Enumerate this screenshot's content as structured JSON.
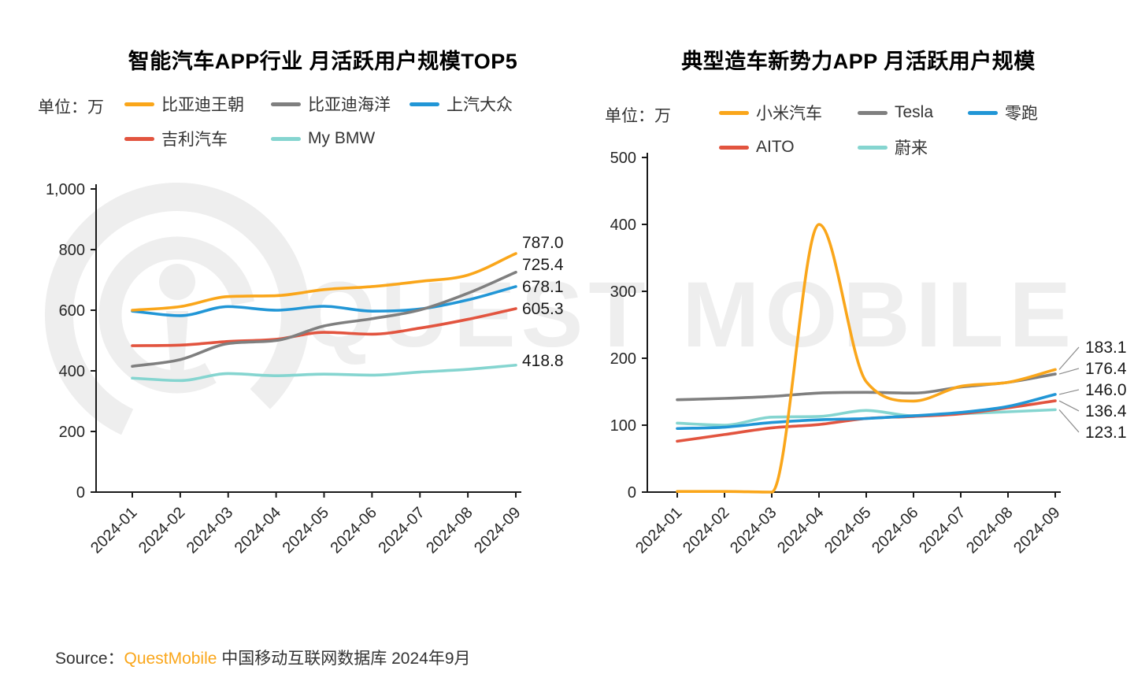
{
  "watermark": {
    "text": "QUEST MOBILE"
  },
  "source": {
    "label": "Source：",
    "brand": "QuestMobile",
    "rest": " 中国移动互联网数据库 2024年9月"
  },
  "chart_data": [
    {
      "type": "line",
      "title": "智能汽车APP行业 月活跃用户规模TOP5",
      "unit_label": "单位：万",
      "xlabel": "",
      "ylabel": "",
      "grid": false,
      "legend_position": "top",
      "categories": [
        "2024-01",
        "2024-02",
        "2024-03",
        "2024-04",
        "2024-05",
        "2024-06",
        "2024-07",
        "2024-08",
        "2024-09"
      ],
      "ylim": [
        0,
        1000
      ],
      "yticks": [
        0,
        200,
        400,
        600,
        800,
        1000
      ],
      "ytick_labels": [
        "0",
        "200",
        "400",
        "600",
        "800",
        "1,000"
      ],
      "series": [
        {
          "name": "比亚迪王朝",
          "color": "#FAA61A",
          "values": [
            600,
            612,
            645,
            648,
            668,
            678,
            695,
            716,
            787.0
          ],
          "end_label": "787.0"
        },
        {
          "name": "比亚迪海洋",
          "color": "#7F7F7F",
          "values": [
            415,
            437,
            490,
            500,
            548,
            572,
            601,
            656,
            725.4
          ],
          "end_label": "725.4"
        },
        {
          "name": "上汽大众",
          "color": "#2196D6",
          "values": [
            597,
            582,
            612,
            600,
            613,
            597,
            604,
            634,
            678.1
          ],
          "end_label": "678.1"
        },
        {
          "name": "吉利汽车",
          "color": "#E2543F",
          "values": [
            483,
            485,
            497,
            504,
            527,
            521,
            541,
            570,
            605.3
          ],
          "end_label": "605.3"
        },
        {
          "name": "My BMW",
          "color": "#85D5D0",
          "values": [
            376,
            368,
            391,
            384,
            389,
            386,
            396,
            405,
            418.8
          ],
          "end_label": "418.8"
        }
      ]
    },
    {
      "type": "line",
      "title": "典型造车新势力APP 月活跃用户规模",
      "unit_label": "单位：万",
      "xlabel": "",
      "ylabel": "",
      "grid": false,
      "legend_position": "top",
      "categories": [
        "2024-01",
        "2024-02",
        "2024-03",
        "2024-04",
        "2024-05",
        "2024-06",
        "2024-07",
        "2024-08",
        "2024-09"
      ],
      "ylim": [
        0,
        500
      ],
      "yticks": [
        0,
        100,
        200,
        300,
        400,
        500
      ],
      "ytick_labels": [
        "0",
        "100",
        "200",
        "300",
        "400",
        "500"
      ],
      "series": [
        {
          "name": "小米汽车",
          "color": "#FAA61A",
          "values": [
            1,
            1,
            0,
            400,
            165,
            136,
            158,
            164,
            183.1
          ],
          "end_label": "183.1"
        },
        {
          "name": "Tesla",
          "color": "#7F7F7F",
          "values": [
            138,
            140,
            143,
            148,
            149,
            148,
            157,
            164,
            176.4
          ],
          "end_label": "176.4"
        },
        {
          "name": "零跑",
          "color": "#2196D6",
          "values": [
            95,
            97,
            104,
            108,
            110,
            114,
            119,
            128,
            146.0
          ],
          "end_label": "146.0"
        },
        {
          "name": "AITO",
          "color": "#E2543F",
          "values": [
            76,
            86,
            96,
            101,
            110,
            113,
            117,
            126,
            136.4
          ],
          "end_label": "136.4"
        },
        {
          "name": "蔚来",
          "color": "#85D5D0",
          "values": [
            103,
            100,
            112,
            113,
            122,
            114,
            117,
            120,
            123.1
          ],
          "end_label": "123.1"
        }
      ]
    }
  ]
}
